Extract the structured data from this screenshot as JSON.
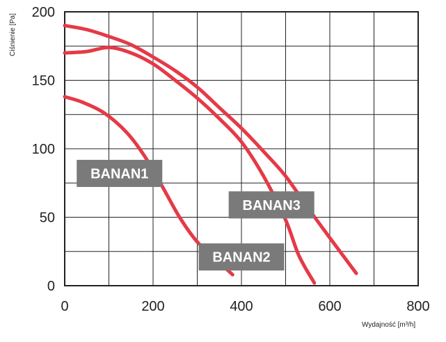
{
  "chart_data": {
    "type": "line",
    "xlabel": "Wydajność [m³/h]",
    "ylabel": "Ciśnienie [Pa]",
    "xlim": [
      0,
      800
    ],
    "ylim": [
      0,
      200
    ],
    "x_ticks": [
      "0",
      "200",
      "400",
      "600",
      "800"
    ],
    "y_ticks": [
      "0",
      "50",
      "100",
      "150",
      "200"
    ],
    "grid": true,
    "line_color": "#e63946",
    "label_bg_color": "#7a7a7a",
    "series": [
      {
        "name": "BANAN1",
        "x": [
          0,
          40,
          90,
          140,
          180,
          220,
          260,
          300,
          340,
          380
        ],
        "y": [
          138,
          134,
          126,
          112,
          95,
          73,
          50,
          32,
          20,
          8
        ]
      },
      {
        "name": "BANAN2",
        "x": [
          0,
          50,
          100,
          150,
          200,
          250,
          300,
          350,
          400,
          450,
          500,
          530,
          565
        ],
        "y": [
          170,
          171,
          174,
          170,
          162,
          150,
          137,
          122,
          105,
          80,
          48,
          22,
          2
        ]
      },
      {
        "name": "BANAN3",
        "x": [
          0,
          50,
          100,
          150,
          200,
          250,
          300,
          350,
          400,
          450,
          500,
          550,
          600,
          660
        ],
        "y": [
          190,
          187,
          182,
          176,
          167,
          157,
          145,
          130,
          115,
          98,
          80,
          57,
          35,
          9
        ]
      }
    ],
    "annotations": [
      {
        "text": "BANAN1",
        "x": 124,
        "y": 82
      },
      {
        "text": "BANAN3",
        "x": 468,
        "y": 59
      },
      {
        "text": "BANAN2",
        "x": 400,
        "y": 21
      }
    ]
  }
}
